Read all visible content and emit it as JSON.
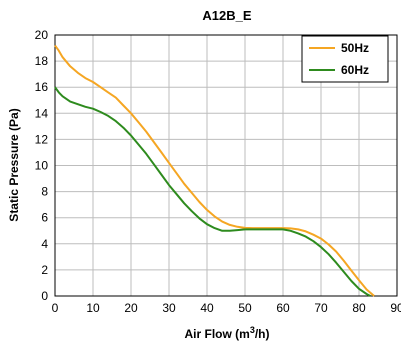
{
  "chart_data": {
    "type": "line",
    "title": "A12B_E",
    "xlabel_main": "Air Flow (m",
    "xlabel_sup": "3",
    "xlabel_tail": "/h)",
    "ylabel": "Static Pressure (Pa)",
    "xlim": [
      0,
      90
    ],
    "ylim": [
      0,
      20
    ],
    "x_ticks": [
      "0",
      "10",
      "20",
      "30",
      "40",
      "50",
      "60",
      "70",
      "80",
      "90"
    ],
    "y_ticks": [
      "0",
      "2",
      "4",
      "6",
      "8",
      "10",
      "12",
      "14",
      "16",
      "18",
      "20"
    ],
    "grid": true,
    "legend_position": "top-right",
    "series": [
      {
        "name": "50Hz",
        "color": "#f5a623",
        "x": [
          0,
          1,
          2,
          4,
          6,
          8,
          10,
          12,
          14,
          16,
          18,
          20,
          22,
          24,
          26,
          28,
          30,
          32,
          34,
          36,
          38,
          40,
          42,
          44,
          46,
          48,
          50,
          52,
          54,
          56,
          58,
          60,
          62,
          64,
          66,
          68,
          70,
          72,
          74,
          76,
          78,
          80,
          82,
          84
        ],
        "y": [
          19.2,
          18.8,
          18.3,
          17.6,
          17.1,
          16.7,
          16.4,
          16.0,
          15.6,
          15.2,
          14.6,
          14.0,
          13.3,
          12.6,
          11.8,
          11.0,
          10.2,
          9.4,
          8.6,
          7.9,
          7.2,
          6.6,
          6.1,
          5.7,
          5.45,
          5.3,
          5.22,
          5.2,
          5.2,
          5.2,
          5.2,
          5.2,
          5.18,
          5.1,
          4.95,
          4.7,
          4.4,
          3.95,
          3.4,
          2.7,
          1.95,
          1.2,
          0.5,
          0.0
        ]
      },
      {
        "name": "60Hz",
        "color": "#2e8b1e",
        "x": [
          0,
          1,
          2,
          4,
          6,
          8,
          10,
          12,
          14,
          16,
          18,
          20,
          22,
          24,
          26,
          28,
          30,
          32,
          34,
          36,
          38,
          40,
          42,
          44,
          46,
          48,
          50,
          52,
          54,
          56,
          58,
          60,
          62,
          64,
          66,
          68,
          70,
          72,
          74,
          76,
          78,
          80,
          82,
          83
        ],
        "y": [
          16.0,
          15.6,
          15.3,
          14.9,
          14.7,
          14.5,
          14.35,
          14.1,
          13.8,
          13.4,
          12.9,
          12.3,
          11.6,
          10.9,
          10.1,
          9.3,
          8.5,
          7.8,
          7.1,
          6.5,
          5.95,
          5.5,
          5.2,
          5.0,
          5.0,
          5.05,
          5.1,
          5.1,
          5.1,
          5.1,
          5.1,
          5.1,
          5.0,
          4.8,
          4.55,
          4.2,
          3.75,
          3.2,
          2.55,
          1.85,
          1.15,
          0.55,
          0.15,
          0.0
        ]
      }
    ]
  }
}
